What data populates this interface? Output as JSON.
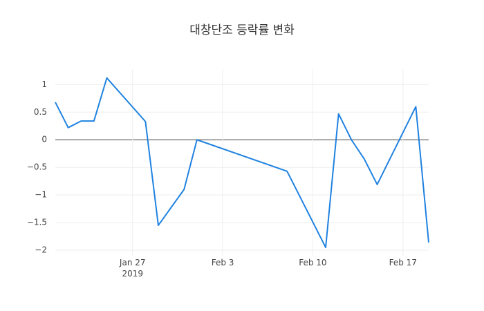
{
  "chart_data": {
    "type": "line",
    "title": "대창단조 등락률 변화",
    "x": [
      "2019-01-21",
      "2019-01-22",
      "2019-01-23",
      "2019-01-24",
      "2019-01-25",
      "2019-01-28",
      "2019-01-29",
      "2019-01-31",
      "2019-02-01",
      "2019-02-08",
      "2019-02-11",
      "2019-02-12",
      "2019-02-13",
      "2019-02-14",
      "2019-02-15",
      "2019-02-18",
      "2019-02-19"
    ],
    "series": [
      {
        "color": "#1f82e0",
        "values": [
          0.68,
          0.22,
          0.34,
          0.34,
          1.12,
          0.33,
          -1.55,
          -0.9,
          0.0,
          -0.57,
          -1.95,
          0.47,
          0.0,
          -0.35,
          -0.81,
          0.6,
          -1.86
        ]
      }
    ],
    "xlim": [
      "2019-01-21",
      "2019-02-19"
    ],
    "xticks": [
      {
        "value": "2019-01-27",
        "label": "Jan 27\n2019"
      },
      {
        "value": "2019-02-03",
        "label": "Feb 3"
      },
      {
        "value": "2019-02-10",
        "label": "Feb 10"
      },
      {
        "value": "2019-02-17",
        "label": "Feb 17"
      }
    ],
    "ylim": [
      -2.1,
      1.28
    ],
    "yticks": [
      {
        "value": -2,
        "label": "−2"
      },
      {
        "value": -1.5,
        "label": "−1.5"
      },
      {
        "value": -1,
        "label": "−1"
      },
      {
        "value": -0.5,
        "label": "−0.5"
      },
      0,
      0.5,
      1
    ],
    "grid": true,
    "zeroline": true
  }
}
